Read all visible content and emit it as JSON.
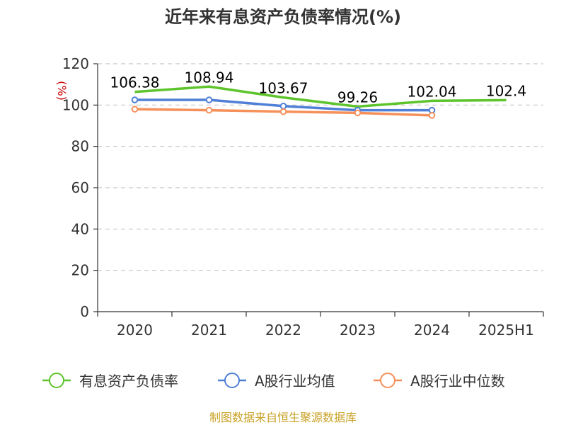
{
  "chart_data": {
    "type": "line",
    "title": "近年来有息资产负债率情况(%)",
    "ylabel": "(%)",
    "categories": [
      "2020",
      "2021",
      "2022",
      "2023",
      "2024",
      "2025H1"
    ],
    "ylim": [
      0,
      120
    ],
    "yticks": [
      0,
      20,
      40,
      60,
      80,
      100,
      120
    ],
    "grid": true,
    "legend_position": "bottom",
    "series": [
      {
        "name": "有息资产负债率",
        "color": "#5ec42d",
        "values": [
          106.38,
          108.94,
          103.67,
          99.26,
          102.04,
          102.4
        ],
        "labels": [
          "106.38",
          "108.94",
          "103.67",
          "99.26",
          "102.04",
          "102.4"
        ]
      },
      {
        "name": "A股行业均值",
        "color": "#4f7fd6",
        "values": [
          102.5,
          102.5,
          99.5,
          97.5,
          97.5,
          null
        ]
      },
      {
        "name": "A股行业中位数",
        "color": "#f5905a",
        "values": [
          98,
          97.5,
          96.8,
          96.2,
          95,
          null
        ]
      }
    ]
  },
  "footer": {
    "source": "制图数据来自恒生聚源数据库"
  }
}
